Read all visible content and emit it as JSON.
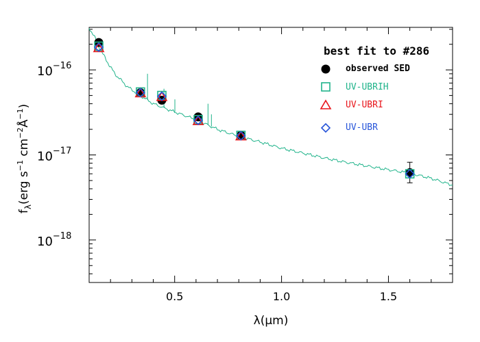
{
  "chart_data": {
    "type": "scatter",
    "x_scale": "linear",
    "y_scale": "log",
    "xlim": [
      0.1,
      1.8
    ],
    "ylim_log10": [
      -18.5,
      -15.5
    ],
    "x_ticks": [
      0.5,
      1.0,
      1.5
    ],
    "x_tick_labels": [
      "0.5",
      "1.0",
      "1.5"
    ],
    "y_ticks_log10": [
      -16,
      -17,
      -18
    ],
    "y_tick_labels": [
      {
        "base": "10",
        "exp": "−16"
      },
      {
        "base": "10",
        "exp": "−17"
      },
      {
        "base": "10",
        "exp": "−18"
      }
    ],
    "xlabel": {
      "lambda": "λ",
      "unit": "(μm)"
    },
    "ylabel": {
      "f": "f",
      "sub": "λ",
      "a": "(erg s",
      "e1": "−1",
      "b": " cm",
      "e2": "−2",
      "angstrom": "Å",
      "e3": "−1",
      "c": ")"
    },
    "legend": {
      "title": "best fit to #286",
      "placement": "top-right",
      "entries": [
        {
          "label": "observed SED",
          "marker": "filled-circle",
          "color": "#000000"
        },
        {
          "label": "UV-UBRIH",
          "marker": "open-square",
          "color": "#1fb38a"
        },
        {
          "label": "UV-UBRI",
          "marker": "open-triangle",
          "color": "#e8141a"
        },
        {
          "label": "UV-UBR",
          "marker": "open-diamond",
          "color": "#2755d9"
        }
      ]
    },
    "observed": [
      {
        "x": 0.145,
        "y": 2.1e-16
      },
      {
        "x": 0.34,
        "y": 5.4e-17
      },
      {
        "x": 0.44,
        "y": 4.4e-17
      },
      {
        "x": 0.61,
        "y": 2.8e-17
      },
      {
        "x": 0.81,
        "y": 1.7e-17
      },
      {
        "x": 1.6,
        "y": 6.2e-18,
        "err_lo": 4.7e-18,
        "err_hi": 8.2e-18
      }
    ],
    "series": [
      {
        "name": "UV-UBRIH",
        "color": "#1fb38a",
        "marker": "open-square",
        "x": [
          0.145,
          0.34,
          0.44,
          0.61,
          0.81,
          1.6
        ],
        "y": [
          1.9e-16,
          5.5e-17,
          5e-17,
          2.6e-17,
          1.7e-17,
          6e-18
        ]
      },
      {
        "name": "UV-UBRI",
        "color": "#e8141a",
        "marker": "open-triangle",
        "x": [
          0.145,
          0.34,
          0.44,
          0.61,
          0.81
        ],
        "y": [
          1.8e-16,
          5.3e-17,
          4.8e-17,
          2.5e-17,
          1.65e-17
        ]
      },
      {
        "name": "UV-UBR",
        "color": "#2755d9",
        "marker": "open-diamond",
        "x": [
          0.145,
          0.34,
          0.44,
          0.61,
          0.81,
          1.6
        ],
        "y": [
          1.85e-16,
          5.4e-17,
          4.9e-17,
          2.55e-17,
          1.68e-17,
          6e-18
        ]
      }
    ],
    "model_spectrum": {
      "name": "best-fit template",
      "color": "#1fb38a",
      "x": [
        0.1,
        0.12,
        0.145,
        0.18,
        0.22,
        0.28,
        0.34,
        0.4,
        0.5,
        0.6,
        0.7,
        0.8,
        0.9,
        1.0,
        1.1,
        1.2,
        1.3,
        1.4,
        1.5,
        1.6,
        1.7,
        1.8
      ],
      "y": [
        3.1e-16,
        2.6e-16,
        1.9e-16,
        1.3e-16,
        9e-17,
        6.3e-17,
        5e-17,
        4e-17,
        3.2e-17,
        2.6e-17,
        2e-17,
        1.65e-17,
        1.42e-17,
        1.2e-17,
        1.05e-17,
        9.2e-18,
        8.2e-18,
        7.4e-18,
        6.7e-18,
        6.1e-18,
        5.3e-18,
        4.4e-18
      ],
      "emission_lines": [
        {
          "x": 0.373,
          "y": 9e-17
        },
        {
          "x": 0.45,
          "y": 6e-17
        },
        {
          "x": 0.501,
          "y": 4.5e-17
        },
        {
          "x": 0.656,
          "y": 4e-17
        },
        {
          "x": 0.672,
          "y": 3e-17
        }
      ]
    }
  }
}
